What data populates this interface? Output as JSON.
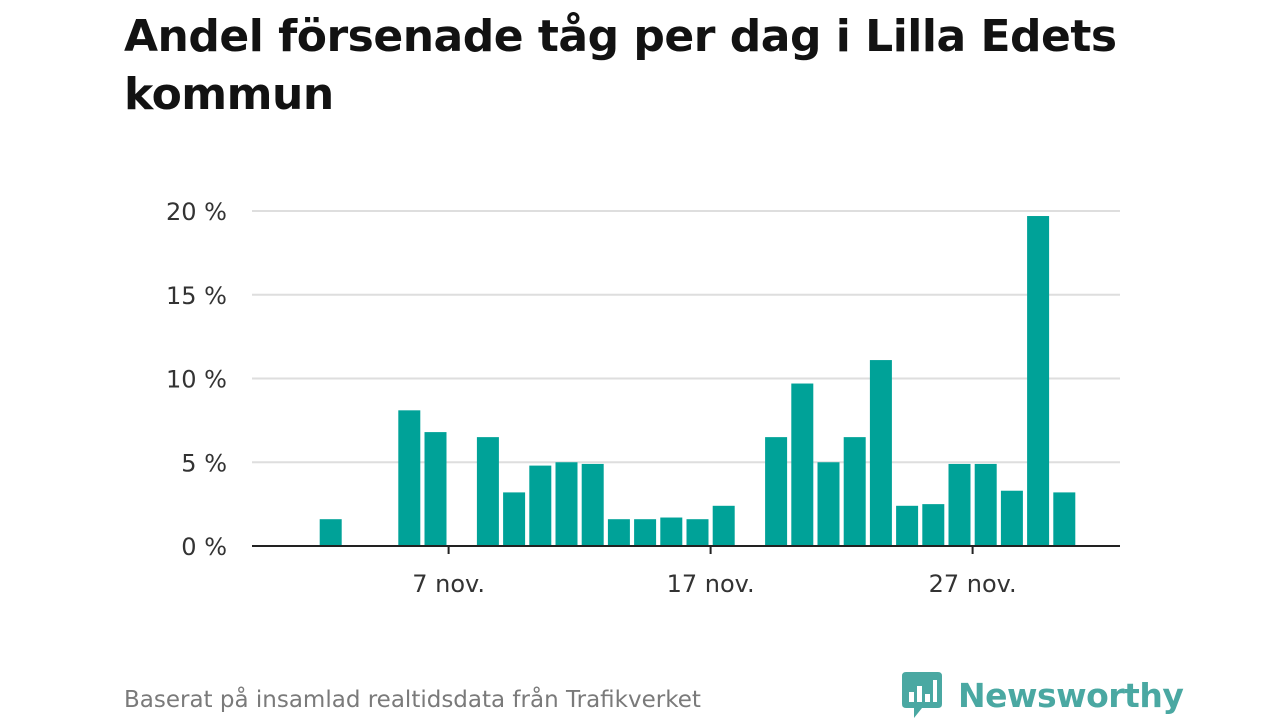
{
  "title": "Andel försenade tåg per dag i Lilla Edets kommun",
  "footer": "Baserat på insamlad realtidsdata från Trafikverket",
  "brand": {
    "name": "Newsworthy",
    "icon": "newsworthy-logo-icon",
    "color": "#4aa8a2"
  },
  "colors": {
    "bar": "#00a298",
    "grid": "#dedede",
    "axis": "#222222",
    "text": "#333333"
  },
  "chart_data": {
    "type": "bar",
    "x": [
      "2020-11-01",
      "2020-11-02",
      "2020-11-03",
      "2020-11-04",
      "2020-11-05",
      "2020-11-06",
      "2020-11-07",
      "2020-11-08",
      "2020-11-09",
      "2020-11-10",
      "2020-11-11",
      "2020-11-12",
      "2020-11-13",
      "2020-11-14",
      "2020-11-15",
      "2020-11-16",
      "2020-11-17",
      "2020-11-18",
      "2020-11-19",
      "2020-11-20",
      "2020-11-21",
      "2020-11-22",
      "2020-11-23",
      "2020-11-24",
      "2020-11-25",
      "2020-11-26",
      "2020-11-27",
      "2020-11-28",
      "2020-11-29",
      "2020-11-30"
    ],
    "values": [
      0,
      1.6,
      0,
      0,
      8.1,
      6.8,
      0,
      6.5,
      3.2,
      4.8,
      5.0,
      4.9,
      1.6,
      1.6,
      1.7,
      1.6,
      2.4,
      0,
      6.5,
      9.7,
      5.0,
      6.5,
      11.1,
      2.4,
      2.5,
      4.9,
      4.9,
      3.3,
      19.7,
      3.2
    ],
    "ylim": [
      0,
      20
    ],
    "yticks": [
      0,
      5,
      10,
      15,
      20
    ],
    "ytick_labels": [
      "0 %",
      "5 %",
      "10 %",
      "15 %",
      "20 %"
    ],
    "xticks": [
      "2020-11-07",
      "2020-11-17",
      "2020-11-27"
    ],
    "xtick_labels": [
      "7 nov.",
      "17 nov.",
      "27 nov."
    ],
    "grid": true,
    "legend": "none"
  }
}
